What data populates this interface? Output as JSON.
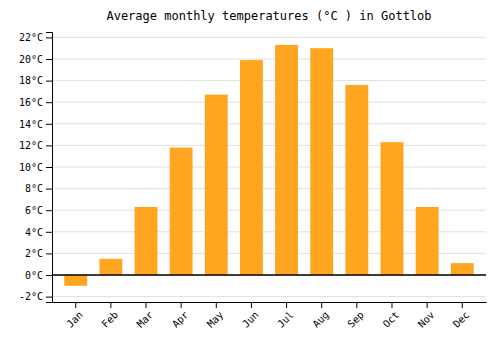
{
  "chart_data": {
    "type": "bar",
    "title": "Average monthly temperatures (°C ) in Gottlob",
    "categories": [
      "Jan",
      "Feb",
      "Mar",
      "Apr",
      "May",
      "Jun",
      "Jul",
      "Aug",
      "Sep",
      "Oct",
      "Nov",
      "Dec"
    ],
    "values": [
      -1.0,
      1.5,
      6.3,
      11.8,
      16.7,
      19.9,
      21.3,
      21.0,
      17.6,
      12.3,
      6.3,
      1.1
    ],
    "color": "#FFA520",
    "ylim": [
      -2.5,
      22.5
    ],
    "yticks": [
      {
        "value": -2,
        "label": "-2°C"
      },
      {
        "value": 0,
        "label": "0°C"
      },
      {
        "value": 2,
        "label": "2°C"
      },
      {
        "value": 4,
        "label": "4°C"
      },
      {
        "value": 6,
        "label": "6°C"
      },
      {
        "value": 8,
        "label": "8°C"
      },
      {
        "value": 10,
        "label": "10°C"
      },
      {
        "value": 12,
        "label": "12°C"
      },
      {
        "value": 14,
        "label": "14°C"
      },
      {
        "value": 16,
        "label": "16°C"
      },
      {
        "value": 18,
        "label": "18°C"
      },
      {
        "value": 20,
        "label": "20°C"
      },
      {
        "value": 22,
        "label": "22°C"
      }
    ],
    "grid": true
  }
}
